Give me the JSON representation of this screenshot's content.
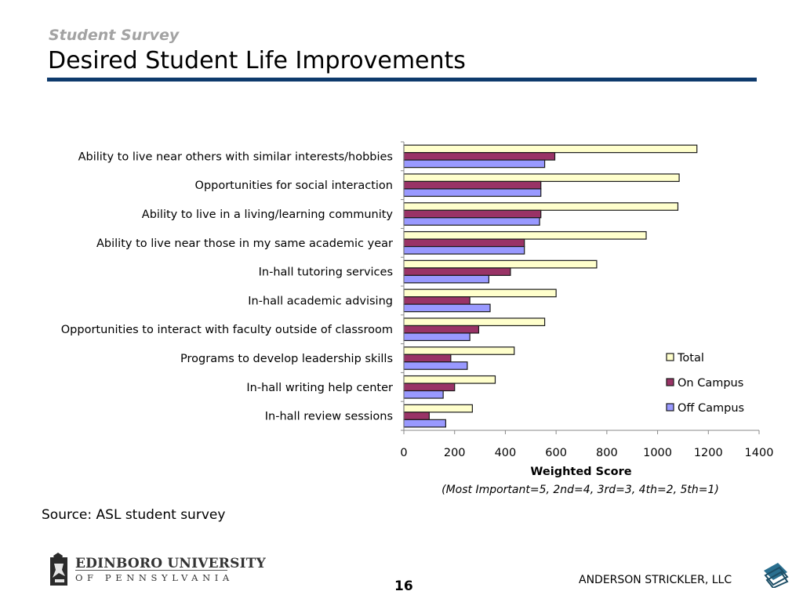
{
  "header": {
    "subtitle": "Student Survey",
    "title": "Desired Student Life Improvements"
  },
  "footer": {
    "source": "Source: ASL student survey",
    "university_name": "EDINBORO UNIVERSITY",
    "university_state": "OF PENNSYLVANIA",
    "page_number": "16",
    "company": "ANDERSON STRICKLER, LLC"
  },
  "colors": {
    "rule": "#0e3a6c",
    "total": "#ffffcc",
    "on_campus": "#993366",
    "off_campus": "#9999ff",
    "bar_stroke": "#1a1a1a"
  },
  "chart_data": {
    "type": "bar",
    "orientation": "horizontal",
    "categories": [
      "Ability to live near others with similar interests/hobbies",
      "Opportunities for social interaction",
      "Ability to live in a living/learning community",
      "Ability to live near those in my same academic year",
      "In-hall tutoring services",
      "In-hall academic advising",
      "Opportunities to interact with faculty outside of classroom",
      "Programs to develop leadership skills",
      "In-hall writing help center",
      "In-hall review sessions"
    ],
    "series": [
      {
        "name": "Total",
        "values": [
          1155,
          1085,
          1080,
          955,
          760,
          600,
          555,
          435,
          360,
          270
        ]
      },
      {
        "name": "On Campus",
        "values": [
          595,
          540,
          540,
          475,
          420,
          260,
          295,
          185,
          200,
          100
        ]
      },
      {
        "name": "Off Campus",
        "values": [
          555,
          540,
          535,
          475,
          335,
          340,
          260,
          250,
          155,
          165
        ]
      }
    ],
    "xlabel": "Weighted Score",
    "xlabel_note": "(Most Important=5, 2nd=4, 3rd=3, 4th=2, 5th=1)",
    "ylabel": "",
    "xlim": [
      0,
      1400
    ],
    "xticks": [
      0,
      200,
      400,
      600,
      800,
      1000,
      1200,
      1400
    ],
    "grid": false,
    "legend_position": "lower-right"
  }
}
